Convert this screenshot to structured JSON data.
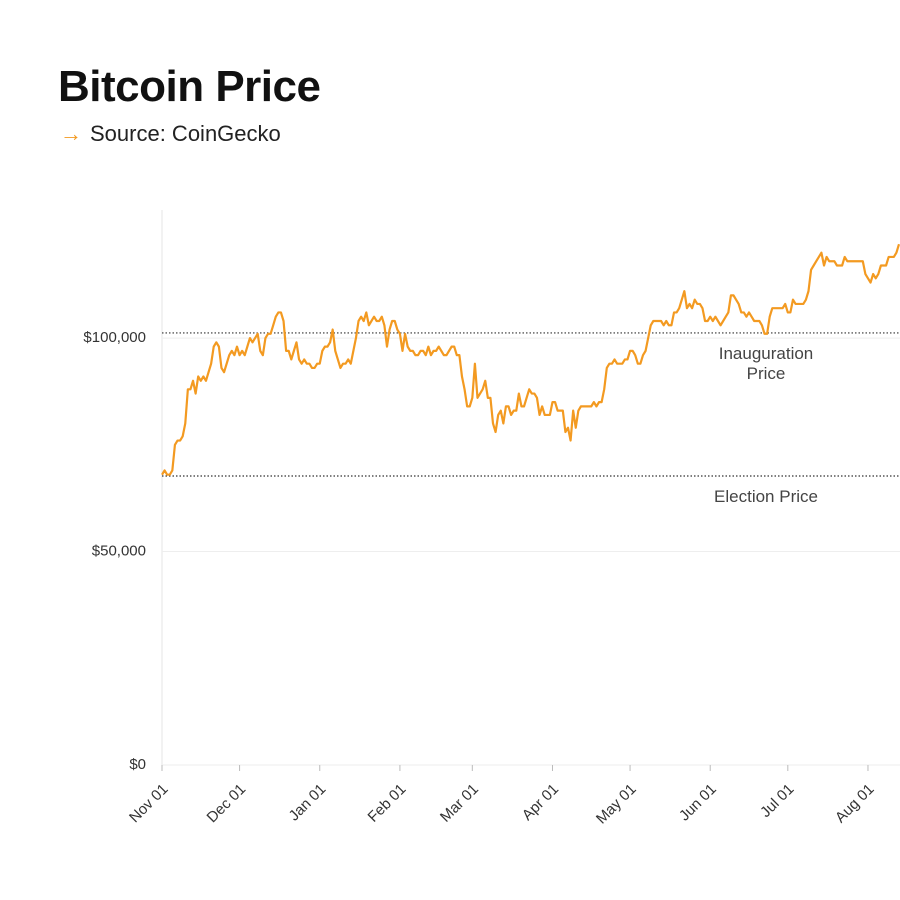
{
  "chart_data": {
    "type": "line",
    "title": "Bitcoin Price",
    "subtitle": "Source: CoinGecko",
    "categories": [
      "Nov 01",
      null,
      null,
      null,
      null,
      null,
      null,
      null,
      null,
      null,
      null,
      null,
      null,
      null,
      null,
      null,
      null,
      null,
      null,
      null,
      null,
      null,
      null,
      null,
      null,
      null,
      null,
      null,
      null,
      null,
      "Dec 01",
      null,
      null,
      null,
      null,
      null,
      null,
      null,
      null,
      null,
      null,
      null,
      null,
      null,
      null,
      null,
      null,
      null,
      null,
      null,
      null,
      null,
      null,
      null,
      null,
      null,
      null,
      null,
      null,
      null,
      null,
      "Jan 01",
      null,
      null,
      null,
      null,
      null,
      null,
      null,
      null,
      null,
      null,
      null,
      null,
      null,
      null,
      null,
      null,
      null,
      null,
      null,
      null,
      null,
      null,
      null,
      null,
      null,
      null,
      null,
      null,
      null,
      null,
      "Feb 01",
      null,
      null,
      null,
      null,
      null,
      null,
      null,
      null,
      null,
      null,
      null,
      null,
      null,
      null,
      null,
      null,
      null,
      null,
      null,
      null,
      null,
      null,
      null,
      null,
      null,
      null,
      null,
      "Mar 01",
      null,
      null,
      null,
      null,
      null,
      null,
      null,
      null,
      null,
      null,
      null,
      null,
      null,
      null,
      null,
      null,
      null,
      null,
      null,
      null,
      null,
      null,
      null,
      null,
      null,
      null,
      null,
      null,
      null,
      null,
      "Apr 01",
      null,
      null,
      null,
      null,
      null,
      null,
      null,
      null,
      null,
      null,
      null,
      null,
      null,
      null,
      null,
      null,
      null,
      null,
      null,
      null,
      null,
      null,
      null,
      null,
      null,
      null,
      null,
      null,
      null,
      "May 01",
      null,
      null,
      null,
      null,
      null,
      null,
      null,
      null,
      null,
      null,
      null,
      null,
      null,
      null,
      null,
      null,
      null,
      null,
      null,
      null,
      null,
      null,
      null,
      null,
      null,
      null,
      null,
      null,
      null,
      null,
      "Jun 01",
      null,
      null,
      null,
      null,
      null,
      null,
      null,
      null,
      null,
      null,
      null,
      null,
      null,
      null,
      null,
      null,
      null,
      null,
      null,
      null,
      null,
      null,
      null,
      null,
      null,
      null,
      null,
      null,
      null,
      "Jul 01",
      null,
      null,
      null,
      null,
      null,
      null,
      null,
      null,
      null,
      null,
      null,
      null,
      null,
      null,
      null,
      null,
      null,
      null,
      null,
      null,
      null,
      null,
      null,
      null,
      null,
      null,
      null,
      null,
      null,
      null,
      "Aug 01",
      null,
      null,
      null,
      null,
      null,
      null,
      null,
      null,
      null,
      null,
      null,
      null
    ],
    "series": [
      {
        "color": "#f39a21",
        "values": [
          68000,
          69000,
          68000,
          68000,
          69000,
          75000,
          76000,
          76000,
          77000,
          80000,
          88000,
          88000,
          90000,
          87000,
          91000,
          90000,
          91000,
          90000,
          92000,
          94000,
          98000,
          99000,
          98000,
          93000,
          92000,
          94000,
          96000,
          97000,
          96000,
          98000,
          96000,
          97000,
          96000,
          98000,
          100000,
          99000,
          100000,
          101000,
          97000,
          96000,
          100000,
          101000,
          101000,
          103000,
          105000,
          106000,
          106000,
          104000,
          97000,
          97000,
          95000,
          97000,
          99000,
          95000,
          94000,
          95000,
          94000,
          94000,
          93000,
          93000,
          94000,
          94000,
          97000,
          98000,
          98000,
          99000,
          102000,
          97000,
          95000,
          93000,
          94000,
          94000,
          95000,
          94000,
          97000,
          100000,
          104000,
          105000,
          104000,
          106000,
          103000,
          104000,
          105000,
          104000,
          104000,
          105000,
          103000,
          98000,
          102000,
          104000,
          104000,
          102000,
          101000,
          97000,
          101000,
          98000,
          97000,
          97000,
          96000,
          96000,
          97000,
          97000,
          96000,
          98000,
          96000,
          97000,
          97000,
          98000,
          97000,
          96000,
          96000,
          97000,
          98000,
          98000,
          96000,
          96000,
          91000,
          88000,
          84000,
          84000,
          86000,
          94000,
          86000,
          87000,
          88000,
          90000,
          86000,
          86000,
          80000,
          78000,
          82000,
          83000,
          80000,
          84000,
          84000,
          82000,
          83000,
          83000,
          87000,
          84000,
          84000,
          86000,
          88000,
          87000,
          87000,
          86000,
          82000,
          84000,
          82000,
          82000,
          82000,
          85000,
          85000,
          83000,
          83000,
          83000,
          78000,
          79000,
          76000,
          83000,
          79000,
          83000,
          84000,
          84000,
          84000,
          84000,
          84000,
          85000,
          84000,
          85000,
          85000,
          88000,
          93000,
          94000,
          94000,
          95000,
          94000,
          94000,
          94000,
          95000,
          95000,
          97000,
          97000,
          96000,
          94000,
          94000,
          96000,
          97000,
          100000,
          103000,
          104000,
          104000,
          104000,
          104000,
          103000,
          104000,
          103000,
          103000,
          106000,
          106000,
          107000,
          109000,
          111000,
          107000,
          108000,
          107000,
          109000,
          108000,
          108000,
          107000,
          104000,
          104000,
          105000,
          104000,
          105000,
          104000,
          103000,
          104000,
          105000,
          106000,
          110000,
          110000,
          109000,
          108000,
          106000,
          106000,
          105000,
          106000,
          105000,
          104000,
          104000,
          104000,
          103000,
          101000,
          101000,
          105000,
          107000,
          107000,
          107000,
          107000,
          107000,
          108000,
          106000,
          106000,
          109000,
          108000,
          108000,
          108000,
          108000,
          109000,
          111000,
          116000,
          117000,
          118000,
          119000,
          120000,
          117000,
          119000,
          118000,
          118000,
          118000,
          117000,
          117000,
          117000,
          119000,
          118000,
          118000,
          118000,
          118000,
          118000,
          118000,
          118000,
          115000,
          114000,
          113000,
          115000,
          114000,
          115000,
          117000,
          117000,
          117000,
          119000,
          119000,
          119000,
          120000,
          122000
        ]
      }
    ],
    "ylim": [
      0,
      130000
    ],
    "yticks": [
      {
        "value": 0,
        "label": "$0"
      },
      {
        "value": 50000,
        "label": "$50,000"
      },
      {
        "value": 100000,
        "label": "$100,000"
      }
    ],
    "grid": true,
    "reference_lines": [
      {
        "label": "Inauguration Price",
        "value": 101200
      },
      {
        "label": "Election Price",
        "value": 67700
      }
    ]
  }
}
